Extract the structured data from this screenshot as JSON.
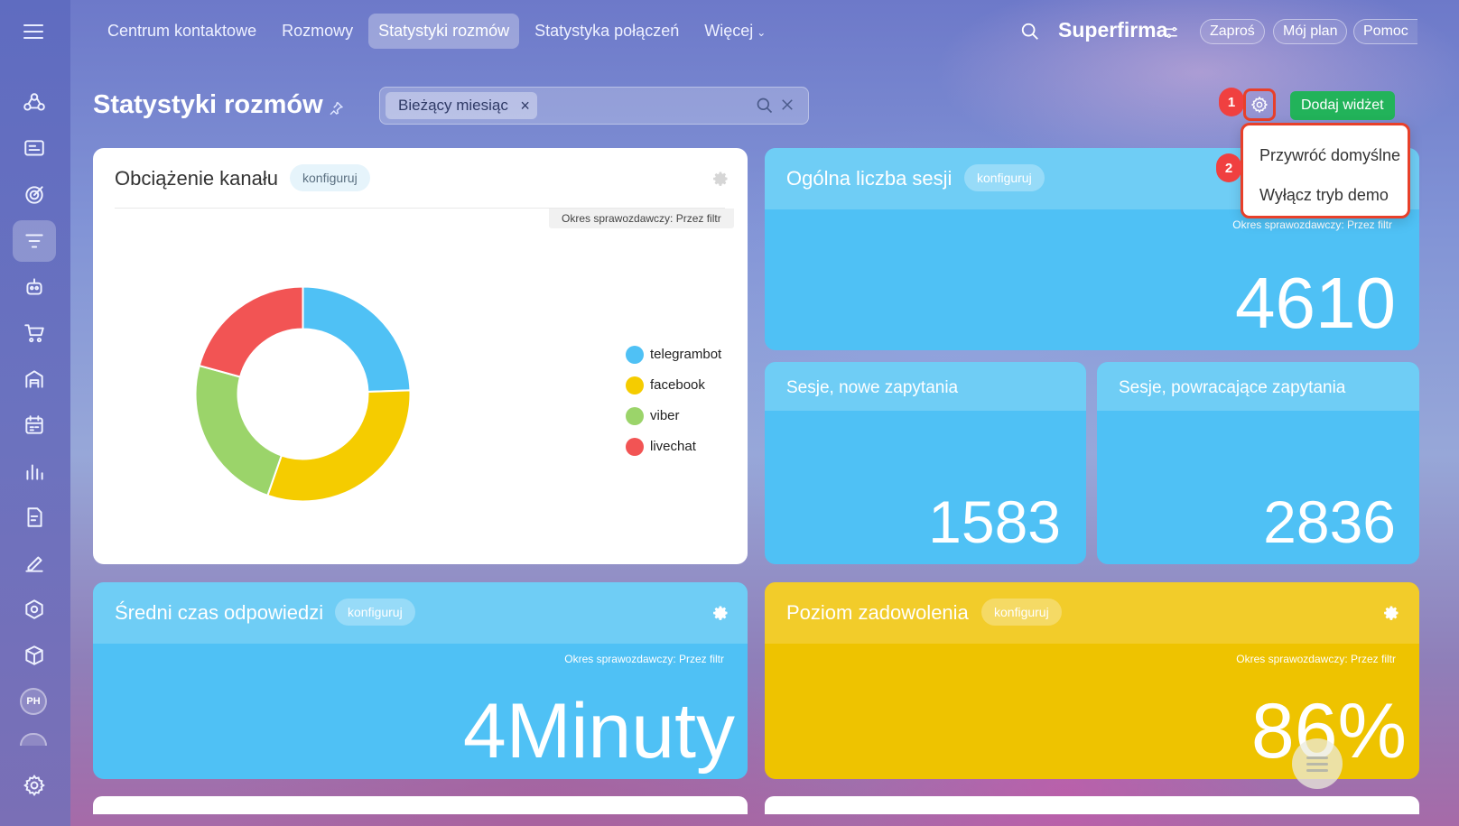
{
  "nav": {
    "tabs": [
      {
        "label": "Centrum kontaktowe"
      },
      {
        "label": "Rozmowy"
      },
      {
        "label": "Statystyki rozmów"
      },
      {
        "label": "Statystyka połączeń"
      },
      {
        "label": "Więcej"
      }
    ],
    "active_tab": 2,
    "company": "Superfirma",
    "invite": "Zaproś",
    "plan": "Mój plan",
    "help": "Pomoc"
  },
  "sidebar": {
    "icons": [
      "crm-icon",
      "contact-center-icon",
      "tasks-target-icon",
      "filter-funnel-icon",
      "robot-icon",
      "cart-icon",
      "warehouse-icon",
      "calendar-icon",
      "analytics-icon",
      "documents-icon",
      "signature-icon",
      "automation-icon",
      "box-icon"
    ],
    "active_index": 3,
    "avatar_initials": "PH",
    "settings_icon": "settings-gear-icon"
  },
  "page": {
    "title": "Statystyki rozmów",
    "filter_chip": "Bieżący miesiąc",
    "add_widget": "Dodaj widżet",
    "badge_1": "1",
    "badge_2": "2"
  },
  "dropdown": {
    "items": [
      "Przywróć domyślne",
      "Wyłącz tryb demo"
    ]
  },
  "widgets": {
    "config_label": "konfiguruj",
    "period_label": "Okres sprawozdawczy: Przez filtr",
    "channel_load": {
      "title": "Obciążenie kanału"
    },
    "total_sessions": {
      "title": "Ogólna liczba sesji",
      "value": "4610"
    },
    "new_sessions": {
      "title": "Sesje, nowe zapytania",
      "value": "1583"
    },
    "returning_sessions": {
      "title": "Sesje, powracające zapytania",
      "value": "2836"
    },
    "avg_response": {
      "title": "Średni czas odpowiedzi",
      "value": "4Minuty"
    },
    "satisfaction": {
      "title": "Poziom zadowolenia",
      "value": "86%"
    }
  },
  "chart_data": {
    "type": "pie",
    "donut": true,
    "categories": [
      "telegrambot",
      "facebook",
      "viber",
      "livechat"
    ],
    "values": [
      1171,
      1480,
      1146,
      994
    ],
    "labels": [
      "1,171",
      "1,480",
      "1,146",
      "994"
    ],
    "colors": [
      "#4fc1f5",
      "#f5cc00",
      "#9bd46a",
      "#f25454"
    ],
    "legend": "right"
  }
}
